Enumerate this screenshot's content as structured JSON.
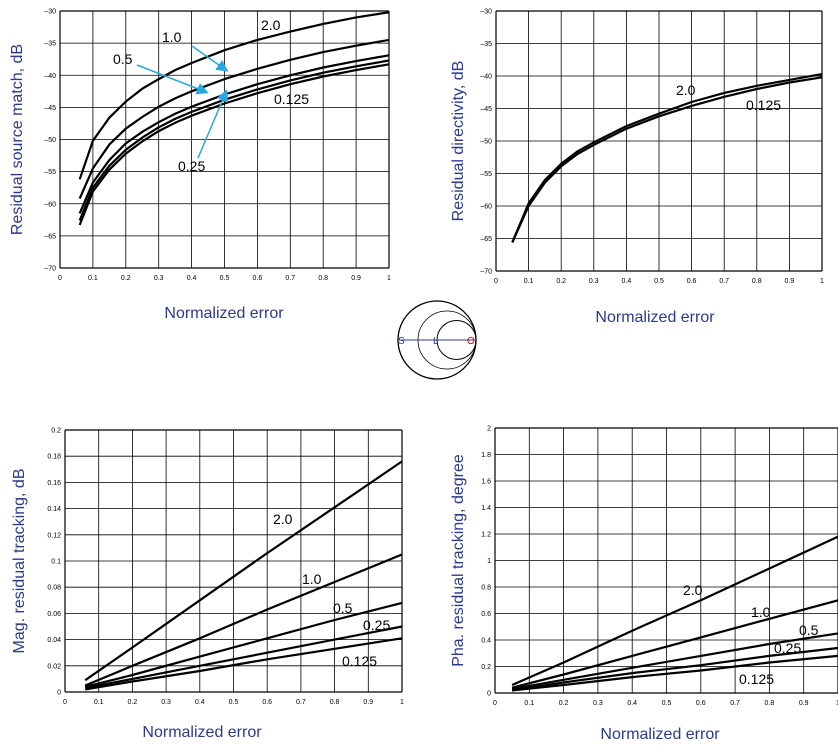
{
  "colors": {
    "axis_label": "#2b3a8c",
    "arrow": "#29a8e0",
    "line": "#000000",
    "smith_open": "#cc0000"
  },
  "smith": {
    "labels": {
      "s": "S",
      "l": "L",
      "o": "O"
    }
  },
  "chart_data": [
    {
      "type": "line",
      "ylabel": "Residual source match, dB",
      "xlabel": "Normalized error",
      "xlim": [
        0,
        1
      ],
      "ylim": [
        -70,
        -30
      ],
      "xticks": [
        "0",
        "0.1",
        "0.2",
        "0.3",
        "0.4",
        "0.5",
        "0.6",
        "0.7",
        "0.8",
        "0.9",
        "1"
      ],
      "yticks": [
        "–30",
        "–35",
        "–40",
        "–45",
        "–50",
        "–55",
        "–60",
        "–65",
        "–70"
      ],
      "grid": true,
      "series": [
        {
          "name": "2.0",
          "x": [
            0.06,
            0.1,
            0.15,
            0.2,
            0.25,
            0.3,
            0.35,
            0.4,
            0.5,
            0.6,
            0.7,
            0.8,
            0.9,
            1.0
          ],
          "y": [
            -56.2,
            -50.2,
            -46.6,
            -44.1,
            -42.1,
            -40.6,
            -39.2,
            -38.1,
            -36.1,
            -34.5,
            -33.2,
            -32.0,
            -31.0,
            -30.2
          ]
        },
        {
          "name": "1.0",
          "x": [
            0.06,
            0.1,
            0.15,
            0.2,
            0.25,
            0.3,
            0.35,
            0.4,
            0.5,
            0.6,
            0.7,
            0.8,
            0.9,
            1.0
          ],
          "y": [
            -59.2,
            -54.5,
            -50.8,
            -48.3,
            -46.5,
            -44.9,
            -43.6,
            -42.5,
            -40.6,
            -39.0,
            -37.6,
            -36.4,
            -35.4,
            -34.5
          ]
        },
        {
          "name": "0.5",
          "x": [
            0.06,
            0.1,
            0.15,
            0.2,
            0.25,
            0.3,
            0.35,
            0.4,
            0.5,
            0.6,
            0.7,
            0.8,
            0.9,
            1.0
          ],
          "y": [
            -61.5,
            -56.7,
            -53.2,
            -50.6,
            -48.8,
            -47.3,
            -46.0,
            -44.9,
            -43.0,
            -41.4,
            -40.0,
            -38.8,
            -37.8,
            -36.9
          ]
        },
        {
          "name": "0.25",
          "x": [
            0.06,
            0.1,
            0.15,
            0.2,
            0.25,
            0.3,
            0.35,
            0.4,
            0.5,
            0.6,
            0.7,
            0.8,
            0.9,
            1.0
          ],
          "y": [
            -62.6,
            -57.5,
            -54.1,
            -51.6,
            -49.7,
            -48.1,
            -46.8,
            -45.7,
            -43.8,
            -42.2,
            -40.8,
            -39.6,
            -38.6,
            -37.7
          ]
        },
        {
          "name": "0.125",
          "x": [
            0.06,
            0.1,
            0.15,
            0.2,
            0.25,
            0.3,
            0.35,
            0.4,
            0.5,
            0.6,
            0.7,
            0.8,
            0.9,
            1.0
          ],
          "y": [
            -63.3,
            -58.1,
            -54.7,
            -52.2,
            -50.3,
            -48.7,
            -47.4,
            -46.3,
            -44.4,
            -42.8,
            -41.4,
            -40.2,
            -39.2,
            -38.3
          ]
        }
      ]
    },
    {
      "type": "line",
      "ylabel": "Residual directivity, dB",
      "xlabel": "Normalized error",
      "xlim": [
        0,
        1
      ],
      "ylim": [
        -70,
        -30
      ],
      "xticks": [
        "0",
        "0.1",
        "0.2",
        "0.3",
        "0.4",
        "0.5",
        "0.6",
        "0.7",
        "0.8",
        "0.9",
        "1"
      ],
      "yticks": [
        "–30",
        "–35",
        "–40",
        "–45",
        "–50",
        "–55",
        "–60",
        "–65",
        "–70"
      ],
      "grid": true,
      "series": [
        {
          "name": "2.0",
          "x": [
            0.05,
            0.1,
            0.15,
            0.2,
            0.25,
            0.3,
            0.4,
            0.5,
            0.6,
            0.7,
            0.8,
            0.9,
            1.0
          ],
          "y": [
            -65.6,
            -59.6,
            -56.0,
            -53.5,
            -51.6,
            -50.2,
            -47.7,
            -45.8,
            -44.0,
            -42.6,
            -41.5,
            -40.6,
            -39.7
          ]
        },
        {
          "name": "0.125",
          "x": [
            0.05,
            0.1,
            0.15,
            0.2,
            0.25,
            0.3,
            0.4,
            0.5,
            0.6,
            0.7,
            0.8,
            0.9,
            1.0
          ],
          "y": [
            -65.6,
            -60.0,
            -56.4,
            -53.9,
            -52.0,
            -50.6,
            -48.1,
            -46.2,
            -44.6,
            -43.2,
            -42.0,
            -41.0,
            -40.2
          ]
        }
      ]
    },
    {
      "type": "line",
      "ylabel": "Mag. residual tracking, dB",
      "xlabel": "Normalized error",
      "xlim": [
        0,
        1
      ],
      "ylim": [
        0,
        0.2
      ],
      "xticks": [
        "0",
        "0.1",
        "0.2",
        "0.3",
        "0.4",
        "0.5",
        "0.6",
        "0.7",
        "0.8",
        "0.9",
        "1"
      ],
      "yticks": [
        "0.2",
        "0.18",
        "0.16",
        "0.14",
        "0.12",
        "0.1",
        "0.08",
        "0.06",
        "0.04",
        "0.02",
        "0"
      ],
      "grid": true,
      "series": [
        {
          "name": "2.0",
          "x": [
            0.06,
            0.2,
            0.4,
            0.6,
            0.8,
            1.0
          ],
          "y": [
            0.009,
            0.034,
            0.07,
            0.106,
            0.141,
            0.176
          ]
        },
        {
          "name": "1.0",
          "x": [
            0.06,
            0.2,
            0.4,
            0.6,
            0.8,
            1.0
          ],
          "y": [
            0.005,
            0.02,
            0.041,
            0.063,
            0.084,
            0.105
          ]
        },
        {
          "name": "0.5",
          "x": [
            0.06,
            0.2,
            0.4,
            0.6,
            0.8,
            1.0
          ],
          "y": [
            0.004,
            0.013,
            0.027,
            0.041,
            0.055,
            0.068
          ]
        },
        {
          "name": "0.25",
          "x": [
            0.06,
            0.2,
            0.4,
            0.6,
            0.8,
            1.0
          ],
          "y": [
            0.003,
            0.01,
            0.02,
            0.03,
            0.04,
            0.05
          ]
        },
        {
          "name": "0.125",
          "x": [
            0.06,
            0.2,
            0.4,
            0.6,
            0.8,
            1.0
          ],
          "y": [
            0.002,
            0.008,
            0.016,
            0.025,
            0.033,
            0.041
          ]
        }
      ]
    },
    {
      "type": "line",
      "ylabel": "Pha. residual tracking, degree",
      "xlabel": "Normalized error",
      "xlim": [
        0,
        1
      ],
      "ylim": [
        0,
        2
      ],
      "xticks": [
        "0",
        "0.1",
        "0.2",
        "0.3",
        "0.4",
        "0.5",
        "0.6",
        "0.7",
        "0.8",
        "0.9",
        "1"
      ],
      "yticks": [
        "2",
        "1.8",
        "1.6",
        "1.4",
        "1.2",
        "1",
        "0.8",
        "0.6",
        "0.4",
        "0.2",
        "0"
      ],
      "grid": true,
      "series": [
        {
          "name": "2.0",
          "x": [
            0.05,
            0.2,
            0.4,
            0.6,
            0.8,
            1.0
          ],
          "y": [
            0.06,
            0.23,
            0.47,
            0.7,
            0.94,
            1.18
          ]
        },
        {
          "name": "1.0",
          "x": [
            0.05,
            0.2,
            0.4,
            0.6,
            0.8,
            1.0
          ],
          "y": [
            0.04,
            0.14,
            0.28,
            0.42,
            0.56,
            0.7
          ]
        },
        {
          "name": "0.5",
          "x": [
            0.05,
            0.2,
            0.4,
            0.6,
            0.8,
            1.0
          ],
          "y": [
            0.03,
            0.1,
            0.19,
            0.28,
            0.37,
            0.45
          ]
        },
        {
          "name": "0.25",
          "x": [
            0.05,
            0.2,
            0.4,
            0.6,
            0.8,
            1.0
          ],
          "y": [
            0.02,
            0.08,
            0.15,
            0.21,
            0.28,
            0.34
          ]
        },
        {
          "name": "0.125",
          "x": [
            0.05,
            0.2,
            0.4,
            0.6,
            0.8,
            1.0
          ],
          "y": [
            0.02,
            0.06,
            0.12,
            0.17,
            0.23,
            0.28
          ]
        }
      ]
    }
  ]
}
